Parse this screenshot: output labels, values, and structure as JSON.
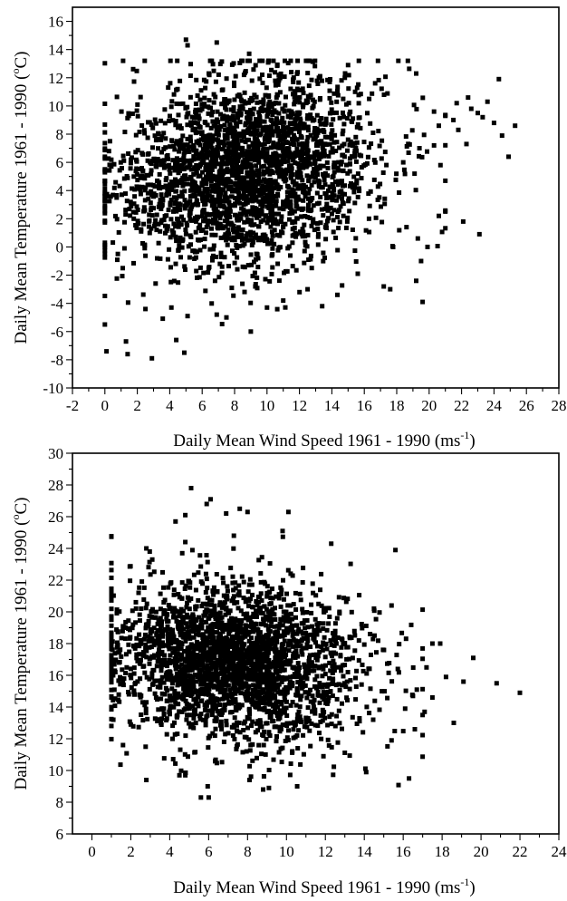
{
  "chart_data": [
    {
      "type": "scatter",
      "xlabel": "Daily Mean Wind Speed 1961 - 1990 (ms",
      "xlabel_superscript": "-1",
      "xlabel_suffix": ")",
      "ylabel": "Daily Mean Temperature 1961 - 1990 (",
      "ylabel_superscript": "o",
      "ylabel_suffix": "C)",
      "xlim": [
        -2,
        28
      ],
      "ylim": [
        -10,
        17
      ],
      "xticks": [
        "-2",
        "0",
        "2",
        "4",
        "6",
        "8",
        "10",
        "12",
        "14",
        "16",
        "18",
        "20",
        "22",
        "24",
        "26",
        "28"
      ],
      "yticks": [
        "-10",
        "-8",
        "-6",
        "-4",
        "-2",
        "0",
        "2",
        "4",
        "6",
        "8",
        "10",
        "12",
        "14",
        "16"
      ],
      "grid": false,
      "marker": "square",
      "marker_color": "#000000",
      "cloud": {
        "count": 2600,
        "wind_mean": 8.8,
        "wind_sd": 4.0,
        "wind_range": [
          0,
          21
        ],
        "temp_intercept": 4.3,
        "temp_slope": 0.13,
        "temp_sd": 3.3,
        "temp_range": [
          -5.5,
          13.2
        ]
      },
      "points": [
        [
          0.1,
          -7.4
        ],
        [
          1.3,
          -6.7
        ],
        [
          1.4,
          -7.6
        ],
        [
          2.9,
          -7.9
        ],
        [
          4.4,
          -6.6
        ],
        [
          4.9,
          -7.5
        ],
        [
          5.1,
          -4.9
        ],
        [
          6.9,
          -4.8
        ],
        [
          7.5,
          -5.0
        ],
        [
          9.0,
          -6.0
        ],
        [
          4.1,
          -4.3
        ],
        [
          2.5,
          -4.4
        ],
        [
          0.0,
          0.3
        ],
        [
          0.8,
          -0.5
        ],
        [
          1.1,
          -1.5
        ],
        [
          19.2,
          -2.4
        ],
        [
          19.6,
          -3.9
        ],
        [
          19.3,
          0.6
        ],
        [
          19.9,
          0.0
        ],
        [
          19.5,
          -1.0
        ],
        [
          5.0,
          14.7
        ],
        [
          5.1,
          14.3
        ],
        [
          6.9,
          14.5
        ],
        [
          8.9,
          13.7
        ],
        [
          15.0,
          12.9
        ],
        [
          13.2,
          12.0
        ],
        [
          11.5,
          12.4
        ],
        [
          14.8,
          12.0
        ],
        [
          16.3,
          10.5
        ],
        [
          19.2,
          12.3
        ],
        [
          20.3,
          9.6
        ],
        [
          20.6,
          8.6
        ],
        [
          21.0,
          9.3
        ],
        [
          21.5,
          9.0
        ],
        [
          21.7,
          10.2
        ],
        [
          21.8,
          8.3
        ],
        [
          22.3,
          7.3
        ],
        [
          22.4,
          10.6
        ],
        [
          22.6,
          9.8
        ],
        [
          23.0,
          9.5
        ],
        [
          23.3,
          9.2
        ],
        [
          23.6,
          10.3
        ],
        [
          24.0,
          8.8
        ],
        [
          24.3,
          11.9
        ],
        [
          24.5,
          7.9
        ],
        [
          24.9,
          6.4
        ],
        [
          25.3,
          8.6
        ],
        [
          22.1,
          1.8
        ],
        [
          23.1,
          0.9
        ],
        [
          20.6,
          2.2
        ],
        [
          20.3,
          7.2
        ],
        [
          20.7,
          5.8
        ],
        [
          19.1,
          5.2
        ],
        [
          18.4,
          6.0
        ],
        [
          17.2,
          -2.8
        ],
        [
          17.6,
          -3.0
        ],
        [
          15.6,
          -1.9
        ],
        [
          12.5,
          -3.0
        ],
        [
          13.4,
          -4.2
        ],
        [
          11.0,
          -3.8
        ],
        [
          10.0,
          -4.3
        ]
      ]
    },
    {
      "type": "scatter",
      "xlabel": "Daily Mean Wind Speed 1961 - 1990 (ms",
      "xlabel_superscript": "-1",
      "xlabel_suffix": ")",
      "ylabel": "Daily Mean Temperature 1961 - 1990 (",
      "ylabel_superscript": "o",
      "ylabel_suffix": "C)",
      "xlim": [
        -1,
        24
      ],
      "ylim": [
        6,
        30
      ],
      "xticks": [
        "0",
        "2",
        "4",
        "6",
        "8",
        "10",
        "12",
        "14",
        "16",
        "18",
        "20",
        "22",
        "24"
      ],
      "yticks": [
        "6",
        "8",
        "10",
        "12",
        "14",
        "16",
        "18",
        "20",
        "22",
        "24",
        "26",
        "28",
        "30"
      ],
      "grid": false,
      "marker": "square",
      "marker_color": "#000000",
      "cloud": {
        "count": 2600,
        "wind_mean": 7.3,
        "wind_sd": 3.2,
        "wind_range": [
          1,
          17
        ],
        "temp_intercept": 17.7,
        "temp_slope": -0.12,
        "temp_sd": 2.5,
        "temp_range": [
          9.0,
          24.8
        ]
      },
      "points": [
        [
          5.1,
          27.8
        ],
        [
          6.1,
          27.1
        ],
        [
          5.9,
          26.8
        ],
        [
          6.9,
          26.2
        ],
        [
          7.6,
          26.5
        ],
        [
          8.0,
          26.3
        ],
        [
          10.1,
          26.3
        ],
        [
          9.8,
          25.1
        ],
        [
          4.8,
          26.1
        ],
        [
          4.3,
          25.7
        ],
        [
          4.8,
          24.4
        ],
        [
          15.6,
          23.9
        ],
        [
          12.3,
          24.3
        ],
        [
          16.3,
          9.5
        ],
        [
          14.1,
          9.9
        ],
        [
          6.0,
          8.3
        ],
        [
          5.6,
          8.3
        ],
        [
          8.8,
          8.8
        ],
        [
          9.1,
          8.9
        ],
        [
          8.1,
          9.4
        ],
        [
          2.8,
          9.4
        ],
        [
          4.5,
          9.7
        ],
        [
          4.8,
          9.7
        ],
        [
          20.8,
          15.5
        ],
        [
          22.0,
          14.9
        ],
        [
          19.6,
          17.1
        ],
        [
          19.1,
          15.6
        ],
        [
          18.6,
          13.0
        ],
        [
          18.2,
          15.9
        ],
        [
          17.9,
          18.0
        ],
        [
          17.5,
          18.0
        ],
        [
          17.2,
          16.5
        ],
        [
          17.5,
          14.6
        ],
        [
          17.0,
          13.5
        ],
        [
          17.1,
          13.7
        ],
        [
          16.7,
          15.1
        ],
        [
          16.5,
          14.7
        ],
        [
          16.1,
          13.9
        ],
        [
          16.6,
          12.6
        ],
        [
          15.4,
          11.9
        ],
        [
          15.4,
          20.4
        ],
        [
          14.5,
          20.2
        ],
        [
          14.3,
          18.6
        ],
        [
          1.2,
          16.2
        ],
        [
          1.5,
          15.8
        ],
        [
          1.1,
          13.2
        ],
        [
          1.6,
          11.6
        ],
        [
          2.0,
          12.9
        ],
        [
          1.9,
          14.8
        ],
        [
          2.8,
          24.0
        ],
        [
          3.1,
          23.3
        ],
        [
          2.4,
          21.2
        ]
      ]
    }
  ]
}
